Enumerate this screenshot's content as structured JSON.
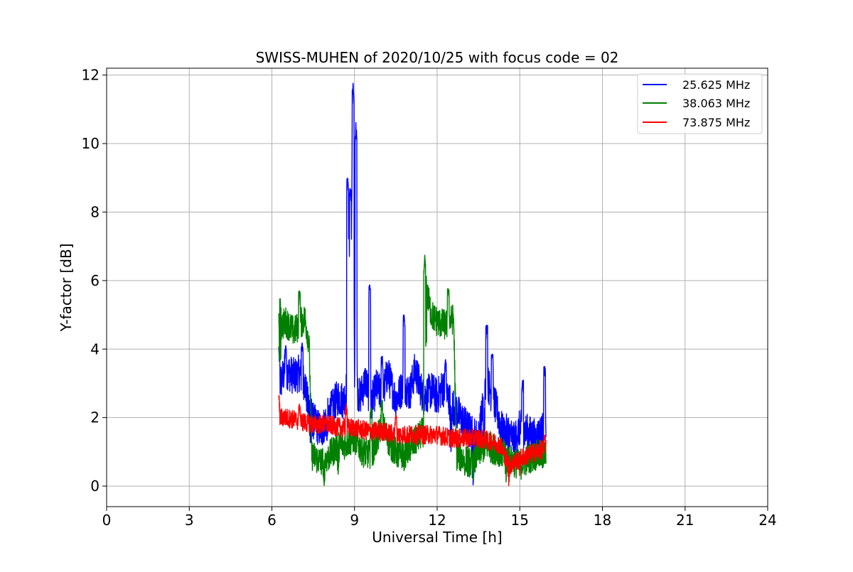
{
  "chart_data": {
    "type": "line",
    "title": "SWISS-MUHEN of 2020/10/25 with focus code = 02",
    "xlabel": "Universal Time [h]",
    "ylabel": "Y-factor [dB]",
    "xlim": [
      0,
      24
    ],
    "ylim": [
      -0.6,
      12.2
    ],
    "xticks": [
      0,
      3,
      6,
      9,
      12,
      15,
      18,
      21,
      24
    ],
    "xtick_labels": [
      "0",
      "3",
      "6",
      "9",
      "12",
      "15",
      "18",
      "21",
      "24"
    ],
    "yticks": [
      0,
      2,
      4,
      6,
      8,
      10,
      12
    ],
    "ytick_labels": [
      "0",
      "2",
      "4",
      "6",
      "8",
      "10",
      "12"
    ],
    "grid": true,
    "legend_position": "top-right",
    "series": [
      {
        "name": "25.625 MHz",
        "color": "#0000ff",
        "x": [
          6.25,
          6.3,
          6.5,
          6.8,
          7.0,
          7.2,
          7.3,
          7.5,
          7.8,
          8.0,
          8.2,
          8.4,
          8.6,
          8.75,
          8.8,
          8.85,
          8.9,
          8.95,
          9.0,
          9.05,
          9.1,
          9.2,
          9.4,
          9.6,
          9.8,
          10.0,
          10.2,
          10.5,
          10.8,
          11.0,
          11.2,
          11.5,
          11.8,
          12.0,
          12.2,
          12.5,
          12.7,
          13.0,
          13.3,
          13.5,
          13.8,
          14.0,
          14.2,
          14.4,
          14.6,
          14.8,
          15.0,
          15.2,
          15.4,
          15.6,
          15.8,
          15.95
        ],
        "y": [
          3.9,
          3.0,
          3.4,
          3.2,
          3.3,
          3.0,
          2.4,
          1.9,
          1.6,
          2.0,
          2.3,
          2.6,
          2.5,
          3.0,
          8.3,
          2.5,
          8.7,
          11.6,
          2.5,
          10.4,
          2.8,
          2.6,
          3.1,
          2.4,
          2.9,
          2.6,
          3.3,
          2.5,
          3.0,
          2.7,
          3.4,
          2.6,
          2.8,
          2.6,
          2.9,
          2.4,
          2.2,
          1.8,
          1.5,
          1.4,
          3.1,
          2.6,
          2.1,
          1.5,
          1.6,
          1.3,
          1.7,
          1.6,
          1.5,
          1.4,
          1.6,
          1.8
        ],
        "peaks": [
          {
            "x": 6.25,
            "y": 4.0
          },
          {
            "x": 6.5,
            "y": 4.1
          },
          {
            "x": 7.1,
            "y": 4.2
          },
          {
            "x": 8.75,
            "y": 9.0
          },
          {
            "x": 8.85,
            "y": 8.7
          },
          {
            "x": 8.95,
            "y": 11.6
          },
          {
            "x": 9.05,
            "y": 10.4
          },
          {
            "x": 9.55,
            "y": 5.9
          },
          {
            "x": 10.8,
            "y": 5.0
          },
          {
            "x": 10.0,
            "y": 3.8
          },
          {
            "x": 12.3,
            "y": 3.7
          },
          {
            "x": 13.8,
            "y": 4.7
          },
          {
            "x": 14.0,
            "y": 3.9
          },
          {
            "x": 15.1,
            "y": 3.1
          },
          {
            "x": 15.9,
            "y": 3.5
          }
        ],
        "lows": [
          {
            "x": 7.4,
            "y": 1.2
          },
          {
            "x": 8.0,
            "y": 1.3
          },
          {
            "x": 12.5,
            "y": 1.0
          },
          {
            "x": 13.3,
            "y": 0.0
          },
          {
            "x": 13.7,
            "y": 0.8
          },
          {
            "x": 14.6,
            "y": 0.3
          }
        ]
      },
      {
        "name": "38.063 MHz",
        "color": "#008000",
        "x": [
          6.25,
          6.5,
          6.8,
          7.0,
          7.2,
          7.35,
          7.45,
          7.8,
          8.0,
          8.3,
          8.6,
          9.0,
          9.3,
          9.6,
          9.8,
          10.0,
          10.3,
          10.6,
          10.9,
          11.2,
          11.5,
          11.55,
          11.8,
          12.0,
          12.3,
          12.6,
          12.7,
          13.0,
          13.3,
          13.5,
          13.8,
          14.0,
          14.3,
          14.6,
          14.8,
          15.0,
          15.3,
          15.6,
          15.95
        ],
        "y": [
          4.6,
          4.8,
          4.5,
          4.7,
          4.9,
          4.2,
          0.9,
          0.7,
          0.8,
          1.1,
          1.2,
          1.4,
          1.0,
          0.9,
          1.3,
          1.8,
          1.2,
          0.9,
          1.0,
          1.3,
          1.6,
          5.9,
          5.0,
          4.8,
          4.7,
          4.9,
          0.9,
          0.8,
          0.6,
          1.0,
          1.2,
          1.1,
          1.0,
          0.8,
          0.7,
          0.6,
          0.8,
          0.9,
          0.9
        ],
        "peaks": [
          {
            "x": 6.3,
            "y": 5.5
          },
          {
            "x": 7.0,
            "y": 5.7
          },
          {
            "x": 11.55,
            "y": 6.75
          },
          {
            "x": 12.4,
            "y": 5.8
          },
          {
            "x": 9.6,
            "y": 2.3
          },
          {
            "x": 10.0,
            "y": 2.5
          }
        ],
        "lows": [
          {
            "x": 6.3,
            "y": 3.5
          },
          {
            "x": 7.9,
            "y": 0.0
          },
          {
            "x": 8.4,
            "y": 0.3
          },
          {
            "x": 10.8,
            "y": 0.4
          },
          {
            "x": 11.6,
            "y": 4.0
          },
          {
            "x": 13.0,
            "y": 0.3
          },
          {
            "x": 14.5,
            "y": 0.1
          }
        ]
      },
      {
        "name": "73.875 MHz",
        "color": "#ff0000",
        "x": [
          6.25,
          6.5,
          7.0,
          7.5,
          8.0,
          8.5,
          9.0,
          9.5,
          10.0,
          10.5,
          11.0,
          11.5,
          12.0,
          12.5,
          13.0,
          13.5,
          14.0,
          14.3,
          14.6,
          14.8,
          15.0,
          15.3,
          15.6,
          15.95
        ],
        "y": [
          2.0,
          2.0,
          1.9,
          1.8,
          1.8,
          1.7,
          1.7,
          1.6,
          1.6,
          1.5,
          1.5,
          1.5,
          1.5,
          1.4,
          1.4,
          1.4,
          1.3,
          1.2,
          0.6,
          0.7,
          0.8,
          0.9,
          1.0,
          1.1
        ],
        "peaks": [
          {
            "x": 6.25,
            "y": 2.65
          },
          {
            "x": 7.0,
            "y": 2.4
          },
          {
            "x": 8.7,
            "y": 2.4
          },
          {
            "x": 10.5,
            "y": 2.1
          },
          {
            "x": 15.9,
            "y": 1.5
          }
        ],
        "lows": [
          {
            "x": 14.6,
            "y": 0.0
          },
          {
            "x": 15.0,
            "y": 0.3
          }
        ]
      }
    ]
  }
}
